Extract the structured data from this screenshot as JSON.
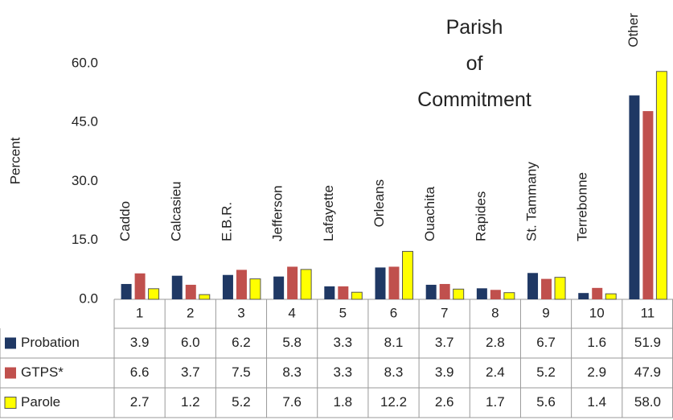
{
  "chart_data": {
    "type": "bar",
    "title": "Parish of Commitment",
    "y_label": "Percent",
    "categories": [
      "1",
      "2",
      "3",
      "4",
      "5",
      "6",
      "7",
      "8",
      "9",
      "10",
      "11"
    ],
    "parishes": [
      "Caddo",
      "Calcasieu",
      "E.B.R.",
      "Jefferson",
      "Lafayette",
      "Orleans",
      "Ouachita",
      "Rapides",
      "St. Tammany",
      "Terrebonne",
      "Other"
    ],
    "series": [
      {
        "name": "Probation",
        "color": "#1f3864",
        "values": [
          3.9,
          6.0,
          6.2,
          5.8,
          3.3,
          8.1,
          3.7,
          2.8,
          6.7,
          1.6,
          51.9
        ],
        "value_labels": [
          "3.9",
          "6.0",
          "6.2",
          "5.8",
          "3.3",
          "8.1",
          "3.7",
          "2.8",
          "6.7",
          "1.6",
          "51.9"
        ]
      },
      {
        "name": "GTPS*",
        "color": "#c0504d",
        "values": [
          6.6,
          3.7,
          7.5,
          8.3,
          3.3,
          8.3,
          3.9,
          2.4,
          5.2,
          2.9,
          47.9
        ],
        "value_labels": [
          "6.6",
          "3.7",
          "7.5",
          "8.3",
          "3.3",
          "8.3",
          "3.9",
          "2.4",
          "5.2",
          "2.9",
          "47.9"
        ]
      },
      {
        "name": "Parole",
        "color": "#ffff00",
        "values": [
          2.7,
          1.2,
          5.2,
          7.6,
          1.8,
          12.2,
          2.6,
          1.7,
          5.6,
          1.4,
          58.0
        ],
        "value_labels": [
          "2.7",
          "1.2",
          "5.2",
          "7.6",
          "1.8",
          "12.2",
          "2.6",
          "1.7",
          "5.6",
          "1.4",
          "58.0"
        ]
      }
    ],
    "ylim": [
      0,
      60
    ],
    "yticks": [
      {
        "value": 0,
        "label": "0.0"
      },
      {
        "value": 15,
        "label": "15.0"
      },
      {
        "value": 30,
        "label": "30.0"
      },
      {
        "value": 45,
        "label": "45.0"
      },
      {
        "value": 60,
        "label": "60.0"
      }
    ]
  }
}
